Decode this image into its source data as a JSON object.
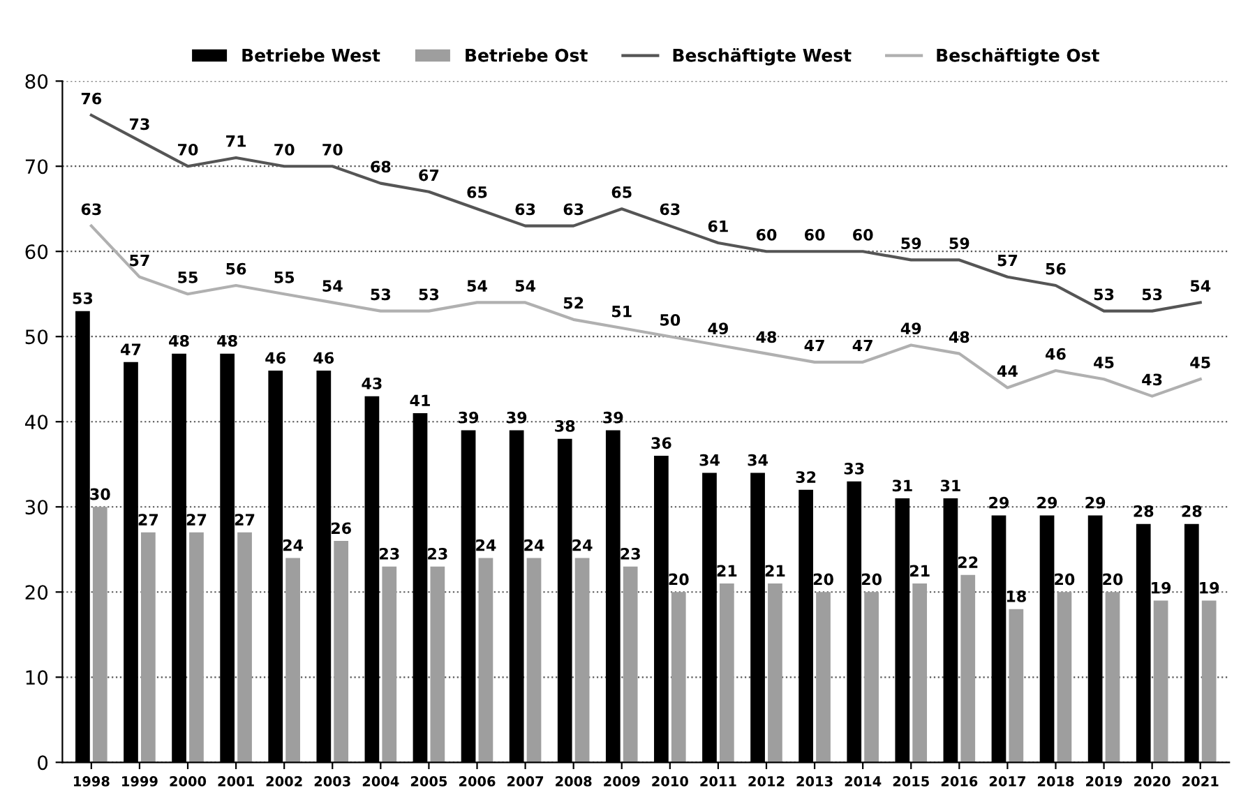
{
  "chart_data": {
    "type": "bar",
    "categories": [
      "1998",
      "1999",
      "2000",
      "2001",
      "2002",
      "2003",
      "2004",
      "2005",
      "2006",
      "2007",
      "2008",
      "2009",
      "2010",
      "2011",
      "2012",
      "2013",
      "2014",
      "2015",
      "2016",
      "2017",
      "2018",
      "2019",
      "2020",
      "2021"
    ],
    "series": [
      {
        "name": "Betriebe West",
        "color": "#000000",
        "values": [
          53,
          47,
          48,
          48,
          46,
          46,
          43,
          41,
          39,
          39,
          38,
          39,
          36,
          34,
          34,
          32,
          33,
          31,
          31,
          29,
          29,
          29,
          28,
          28
        ]
      },
      {
        "name": "Betriebe Ost",
        "color": "#9e9e9e",
        "values": [
          30,
          27,
          27,
          27,
          24,
          26,
          23,
          23,
          24,
          24,
          24,
          23,
          20,
          21,
          21,
          20,
          20,
          21,
          22,
          18,
          20,
          20,
          19,
          19
        ]
      },
      {
        "name": "Beschäftigte West",
        "type": "line",
        "color": "#555555",
        "values": [
          76,
          73,
          70,
          71,
          70,
          70,
          68,
          67,
          65,
          63,
          63,
          65,
          63,
          61,
          60,
          60,
          60,
          59,
          59,
          57,
          56,
          53,
          53,
          54
        ]
      },
      {
        "name": "Beschäftigte Ost",
        "type": "line",
        "color": "#b0b0b0",
        "values": [
          63,
          57,
          55,
          56,
          55,
          54,
          53,
          53,
          54,
          54,
          52,
          51,
          50,
          49,
          48,
          47,
          47,
          49,
          48,
          44,
          46,
          45,
          43,
          45
        ]
      }
    ],
    "ylim": [
      0,
      80
    ],
    "yticks": [
      0,
      10,
      20,
      30,
      40,
      50,
      60,
      70,
      80
    ],
    "grid": "y",
    "legend": "top",
    "data_labels": true,
    "marker": "none",
    "line_style": "solid"
  }
}
